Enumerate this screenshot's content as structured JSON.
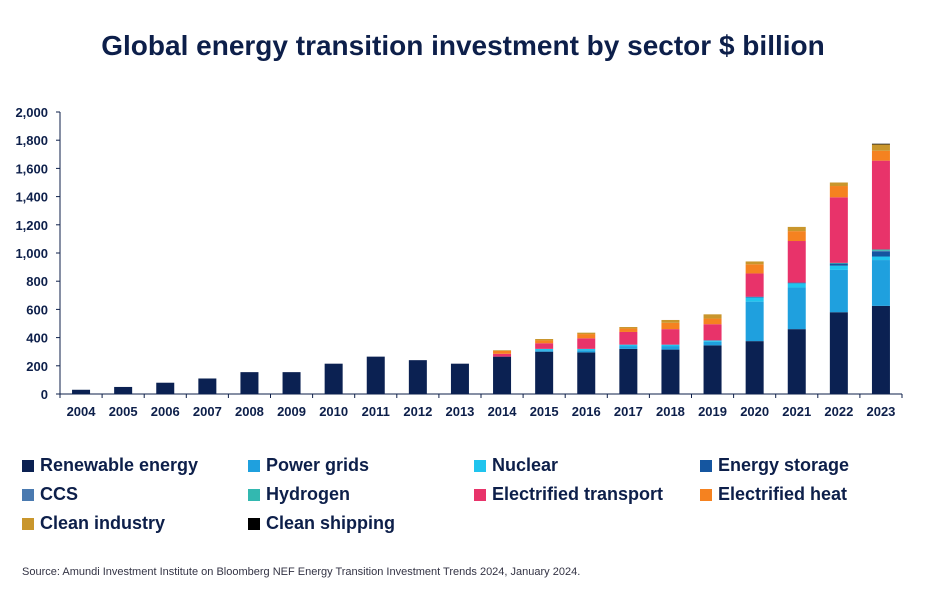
{
  "chart_data": {
    "type": "bar",
    "stacked": true,
    "title": "Global energy transition investment by sector $ billion",
    "xlabel": "",
    "ylabel": "",
    "ylim": [
      0,
      2000
    ],
    "yticks": [
      "0",
      "200",
      "400",
      "600",
      "800",
      "1,000",
      "1,200",
      "1,400",
      "1,600",
      "1,800",
      "2,000"
    ],
    "ytick_values": [
      0,
      200,
      400,
      600,
      800,
      1000,
      1200,
      1400,
      1600,
      1800,
      2000
    ],
    "grid": false,
    "legend_position": "bottom",
    "categories": [
      "2004",
      "2005",
      "2006",
      "2007",
      "2008",
      "2009",
      "2010",
      "2011",
      "2012",
      "2013",
      "2014",
      "2015",
      "2016",
      "2017",
      "2018",
      "2019",
      "2020",
      "2021",
      "2022",
      "2023"
    ],
    "series": [
      {
        "name": "Renewable energy",
        "color": "#0b2152",
        "values": [
          30,
          50,
          80,
          110,
          155,
          155,
          215,
          265,
          240,
          215,
          265,
          300,
          295,
          320,
          315,
          345,
          375,
          460,
          580,
          625
        ]
      },
      {
        "name": "Power grids",
        "color": "#1fa0de",
        "values": [
          0,
          0,
          0,
          0,
          0,
          0,
          0,
          0,
          0,
          0,
          0,
          10,
          15,
          20,
          25,
          25,
          280,
          295,
          300,
          325
        ]
      },
      {
        "name": "Nuclear",
        "color": "#20c4ee",
        "values": [
          0,
          0,
          0,
          0,
          0,
          0,
          0,
          0,
          0,
          0,
          0,
          10,
          10,
          10,
          10,
          10,
          30,
          30,
          30,
          25
        ]
      },
      {
        "name": "Energy storage",
        "color": "#1556a0",
        "values": [
          0,
          0,
          0,
          0,
          0,
          0,
          0,
          0,
          0,
          0,
          0,
          0,
          0,
          0,
          0,
          0,
          5,
          5,
          15,
          35
        ]
      },
      {
        "name": "CCS",
        "color": "#4a7ab0",
        "values": [
          0,
          0,
          0,
          0,
          0,
          0,
          0,
          0,
          0,
          0,
          0,
          0,
          0,
          0,
          0,
          0,
          0,
          0,
          0,
          5
        ]
      },
      {
        "name": "Hydrogen",
        "color": "#33b8b0",
        "values": [
          0,
          0,
          0,
          0,
          0,
          0,
          0,
          0,
          0,
          0,
          0,
          0,
          0,
          0,
          0,
          0,
          0,
          0,
          5,
          10
        ]
      },
      {
        "name": "Electrified transport",
        "color": "#e8336a",
        "values": [
          0,
          0,
          0,
          0,
          0,
          0,
          0,
          0,
          0,
          0,
          20,
          40,
          75,
          90,
          110,
          115,
          165,
          295,
          465,
          630
        ]
      },
      {
        "name": "Electrified heat",
        "color": "#f58220",
        "values": [
          0,
          0,
          0,
          0,
          0,
          0,
          0,
          0,
          0,
          0,
          20,
          20,
          30,
          25,
          45,
          40,
          65,
          70,
          80,
          70
        ]
      },
      {
        "name": "Clean industry",
        "color": "#c9962c",
        "values": [
          0,
          0,
          0,
          0,
          0,
          0,
          0,
          0,
          0,
          0,
          5,
          10,
          10,
          10,
          20,
          30,
          20,
          30,
          25,
          45
        ]
      },
      {
        "name": "Clean shipping",
        "color": "#000000",
        "values": [
          0,
          0,
          0,
          0,
          0,
          0,
          0,
          0,
          0,
          0,
          0,
          0,
          0,
          0,
          0,
          0,
          0,
          0,
          0,
          5
        ]
      }
    ],
    "source": "Source: Amundi Investment Institute on Bloomberg NEF Energy Transition Investment Trends 2024, January 2024."
  }
}
